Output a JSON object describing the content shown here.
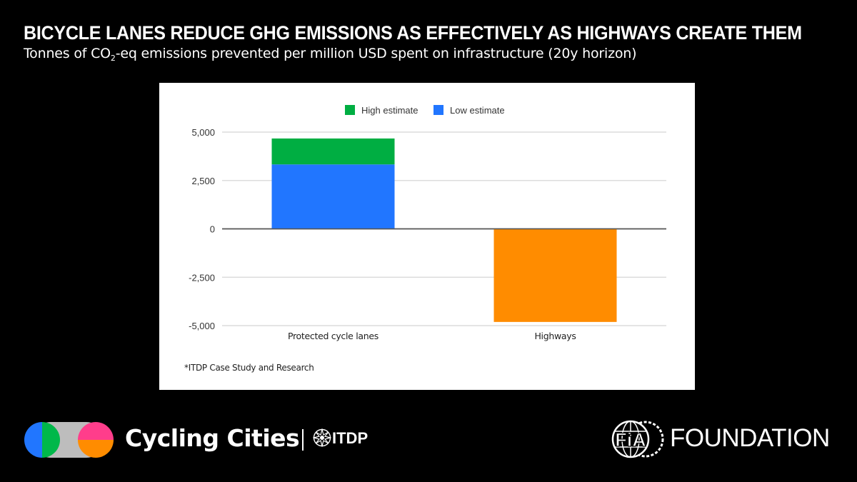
{
  "header": {
    "title": "BICYCLE LANES REDUCE GHG EMISSIONS AS EFFECTIVELY AS HIGHWAYS CREATE THEM",
    "subtitle_before": "Tonnes of CO",
    "subtitle_sub": "2",
    "subtitle_after": "-eq emissions prevented per million USD spent on infrastructure (20y horizon)"
  },
  "chart_data": {
    "type": "bar",
    "stacked": true,
    "title": "",
    "xlabel": "",
    "ylabel": "",
    "categories": [
      "Protected cycle lanes",
      "Highways"
    ],
    "series": [
      {
        "name": "Low estimate",
        "color": "#2176FF",
        "values": [
          3330,
          null
        ]
      },
      {
        "name": "High estimate",
        "color": "#00AE42",
        "values": [
          1340,
          null
        ]
      },
      {
        "name": "Highways",
        "color": "#FF8C00",
        "values": [
          null,
          -4810
        ]
      }
    ],
    "legend": [
      {
        "name": "High estimate",
        "color": "#00AE42"
      },
      {
        "name": "Low estimate",
        "color": "#2176FF"
      }
    ],
    "legend_position": "top",
    "ylim": [
      -5000,
      5000
    ],
    "yticks": [
      5000,
      2500,
      0,
      -2500,
      -5000
    ],
    "ytick_labels": [
      "5,000",
      "2,500",
      "0",
      "-2,500",
      "-5,000"
    ],
    "grid": true,
    "footnote": "*ITDP Case Study and Research"
  },
  "footer": {
    "cycling_cities": "Cycling Cities",
    "itdp": "ITDP",
    "fia_foundation": "FOUNDATION",
    "logo_colors": {
      "blue": "#2176FF",
      "green": "#00B84A",
      "pink": "#FF3D8B",
      "orange": "#FF8C00",
      "gray": "#BDBDBD"
    }
  }
}
